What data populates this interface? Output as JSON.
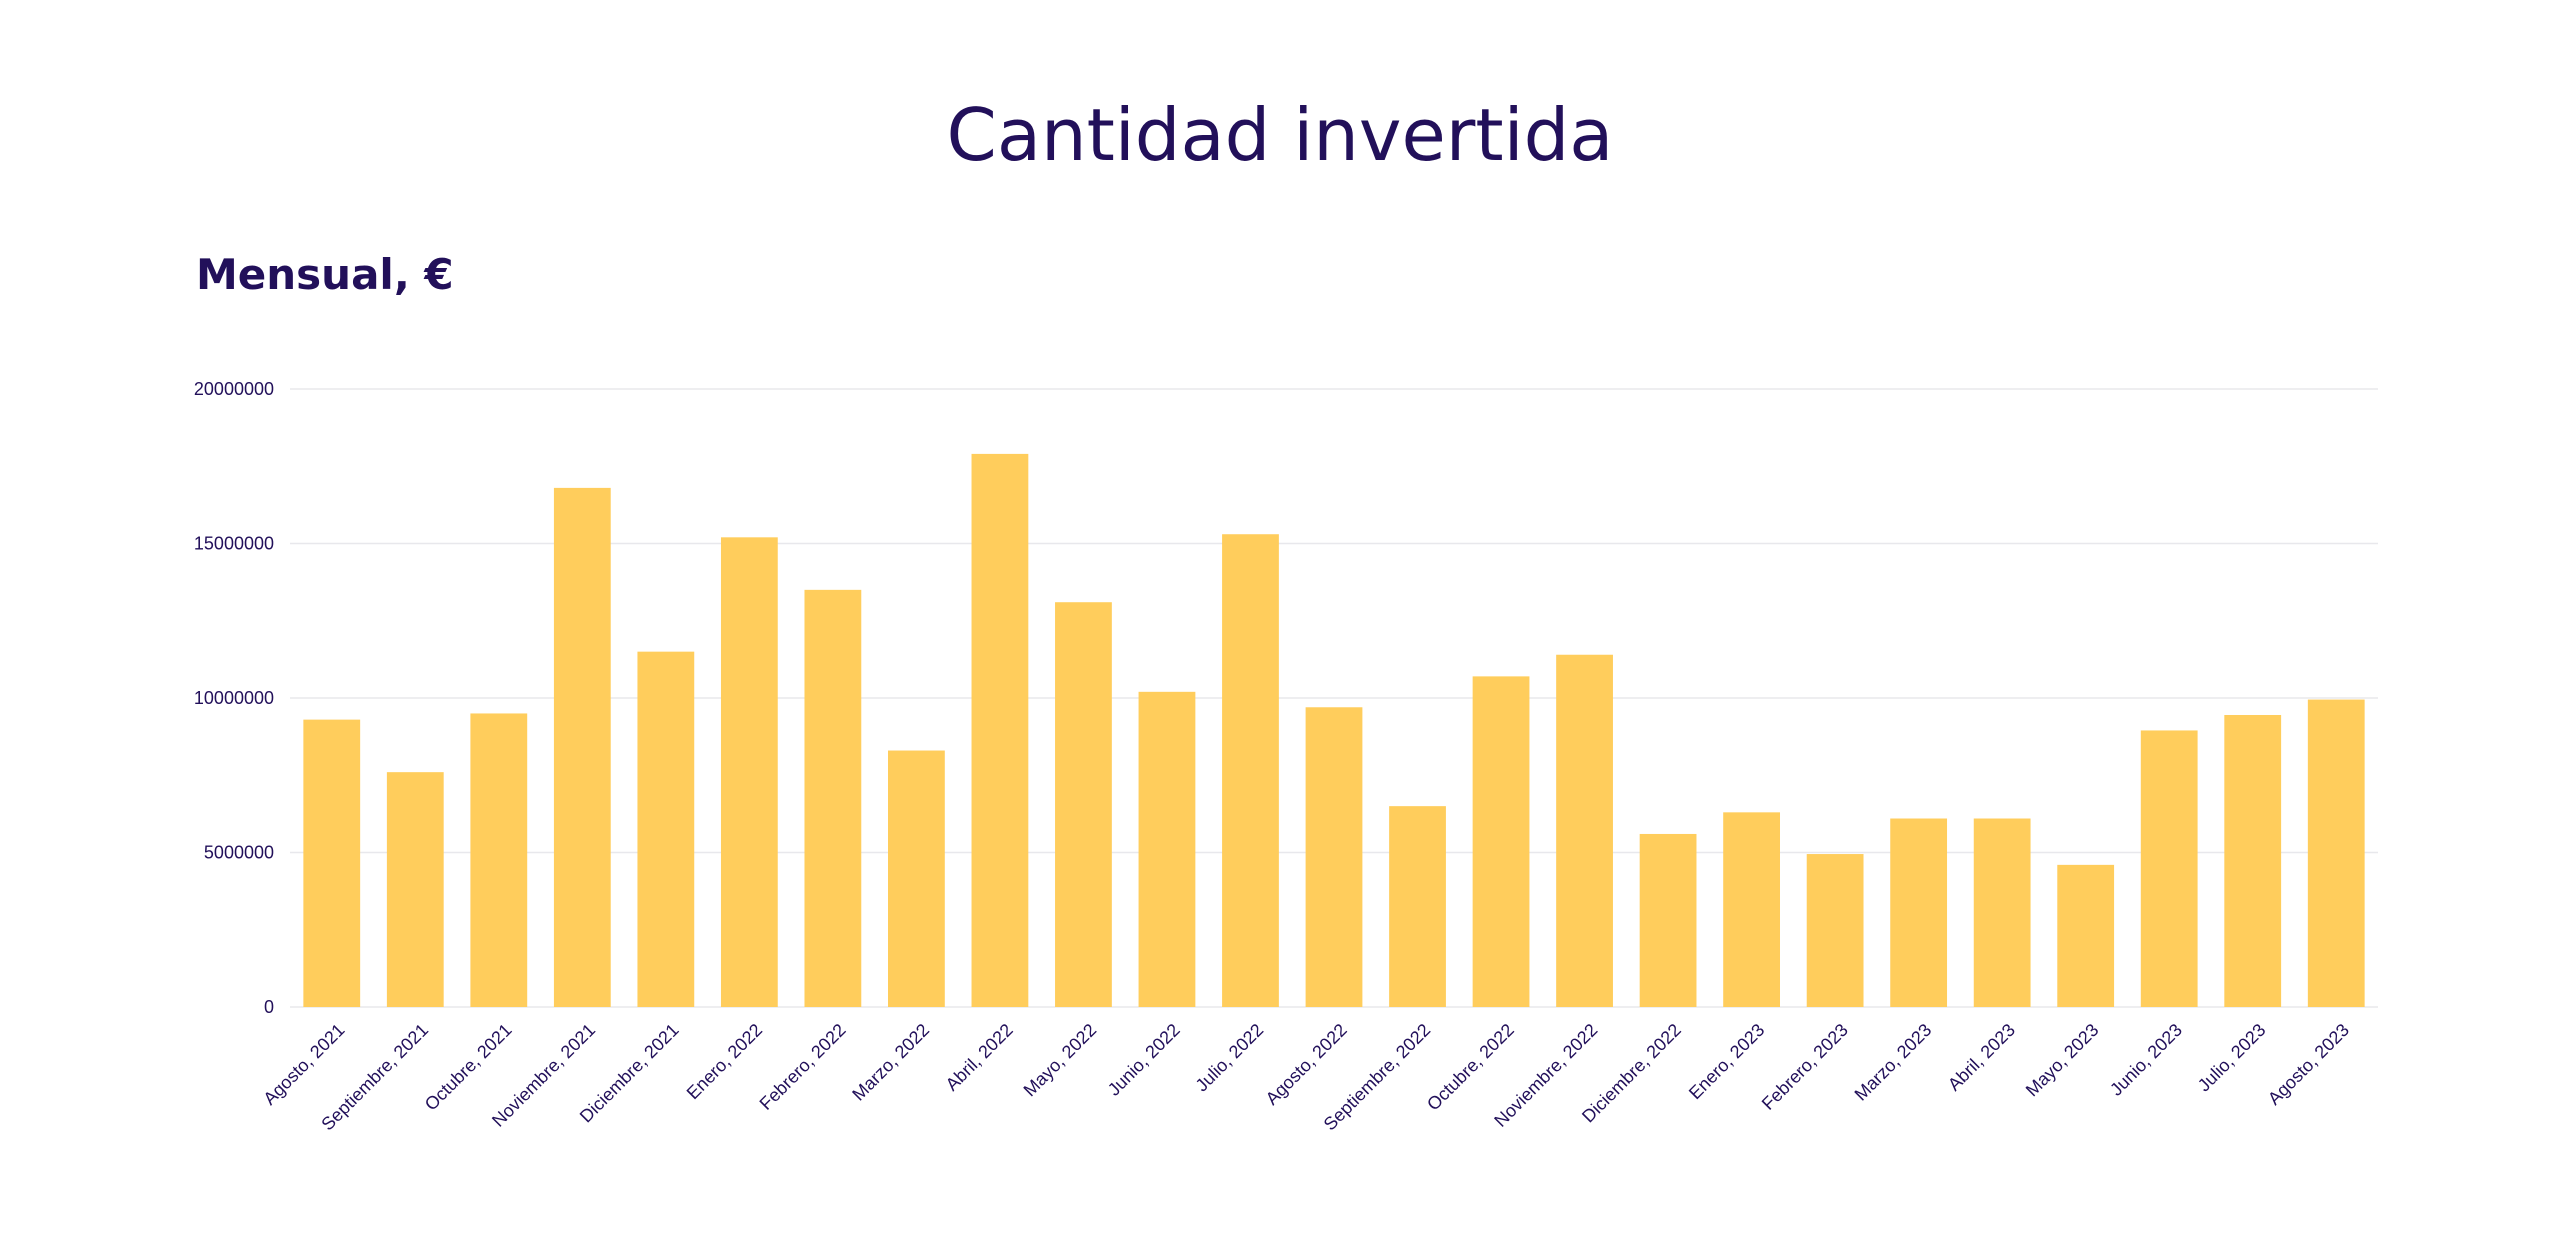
{
  "header": {
    "title": "Cantidad invertida"
  },
  "chart_data": {
    "type": "bar",
    "title": "Cantidad invertida",
    "subtitle": "Mensual, €",
    "xlabel": "",
    "ylabel": "",
    "ylim": [
      0,
      20000000
    ],
    "yticks": [
      "0",
      "5000000",
      "10000000",
      "15000000",
      "20000000"
    ],
    "grid": true,
    "bar_color": "#ffcd5c",
    "grid_color": "#e8e8ec",
    "text_color": "#22105a",
    "categories": [
      "Agosto, 2021",
      "Septiembre, 2021",
      "Octubre, 2021",
      "Noviembre, 2021",
      "Diciembre, 2021",
      "Enero, 2022",
      "Febrero, 2022",
      "Marzo, 2022",
      "Abril, 2022",
      "Mayo, 2022",
      "Junio, 2022",
      "Julio, 2022",
      "Agosto, 2022",
      "Septiembre, 2022",
      "Octubre, 2022",
      "Noviembre, 2022",
      "Diciembre, 2022",
      "Enero, 2023",
      "Febrero, 2023",
      "Marzo, 2023",
      "Abril, 2023",
      "Mayo, 2023",
      "Junio, 2023",
      "Julio, 2023",
      "Agosto, 2023"
    ],
    "values": [
      9300000,
      7600000,
      9500000,
      16800000,
      11500000,
      15200000,
      13500000,
      8300000,
      17900000,
      13100000,
      10200000,
      15300000,
      9700000,
      6500000,
      10700000,
      11400000,
      5600000,
      6300000,
      4950000,
      6100000,
      6100000,
      4600000,
      8950000,
      9450000,
      9950000
    ]
  }
}
